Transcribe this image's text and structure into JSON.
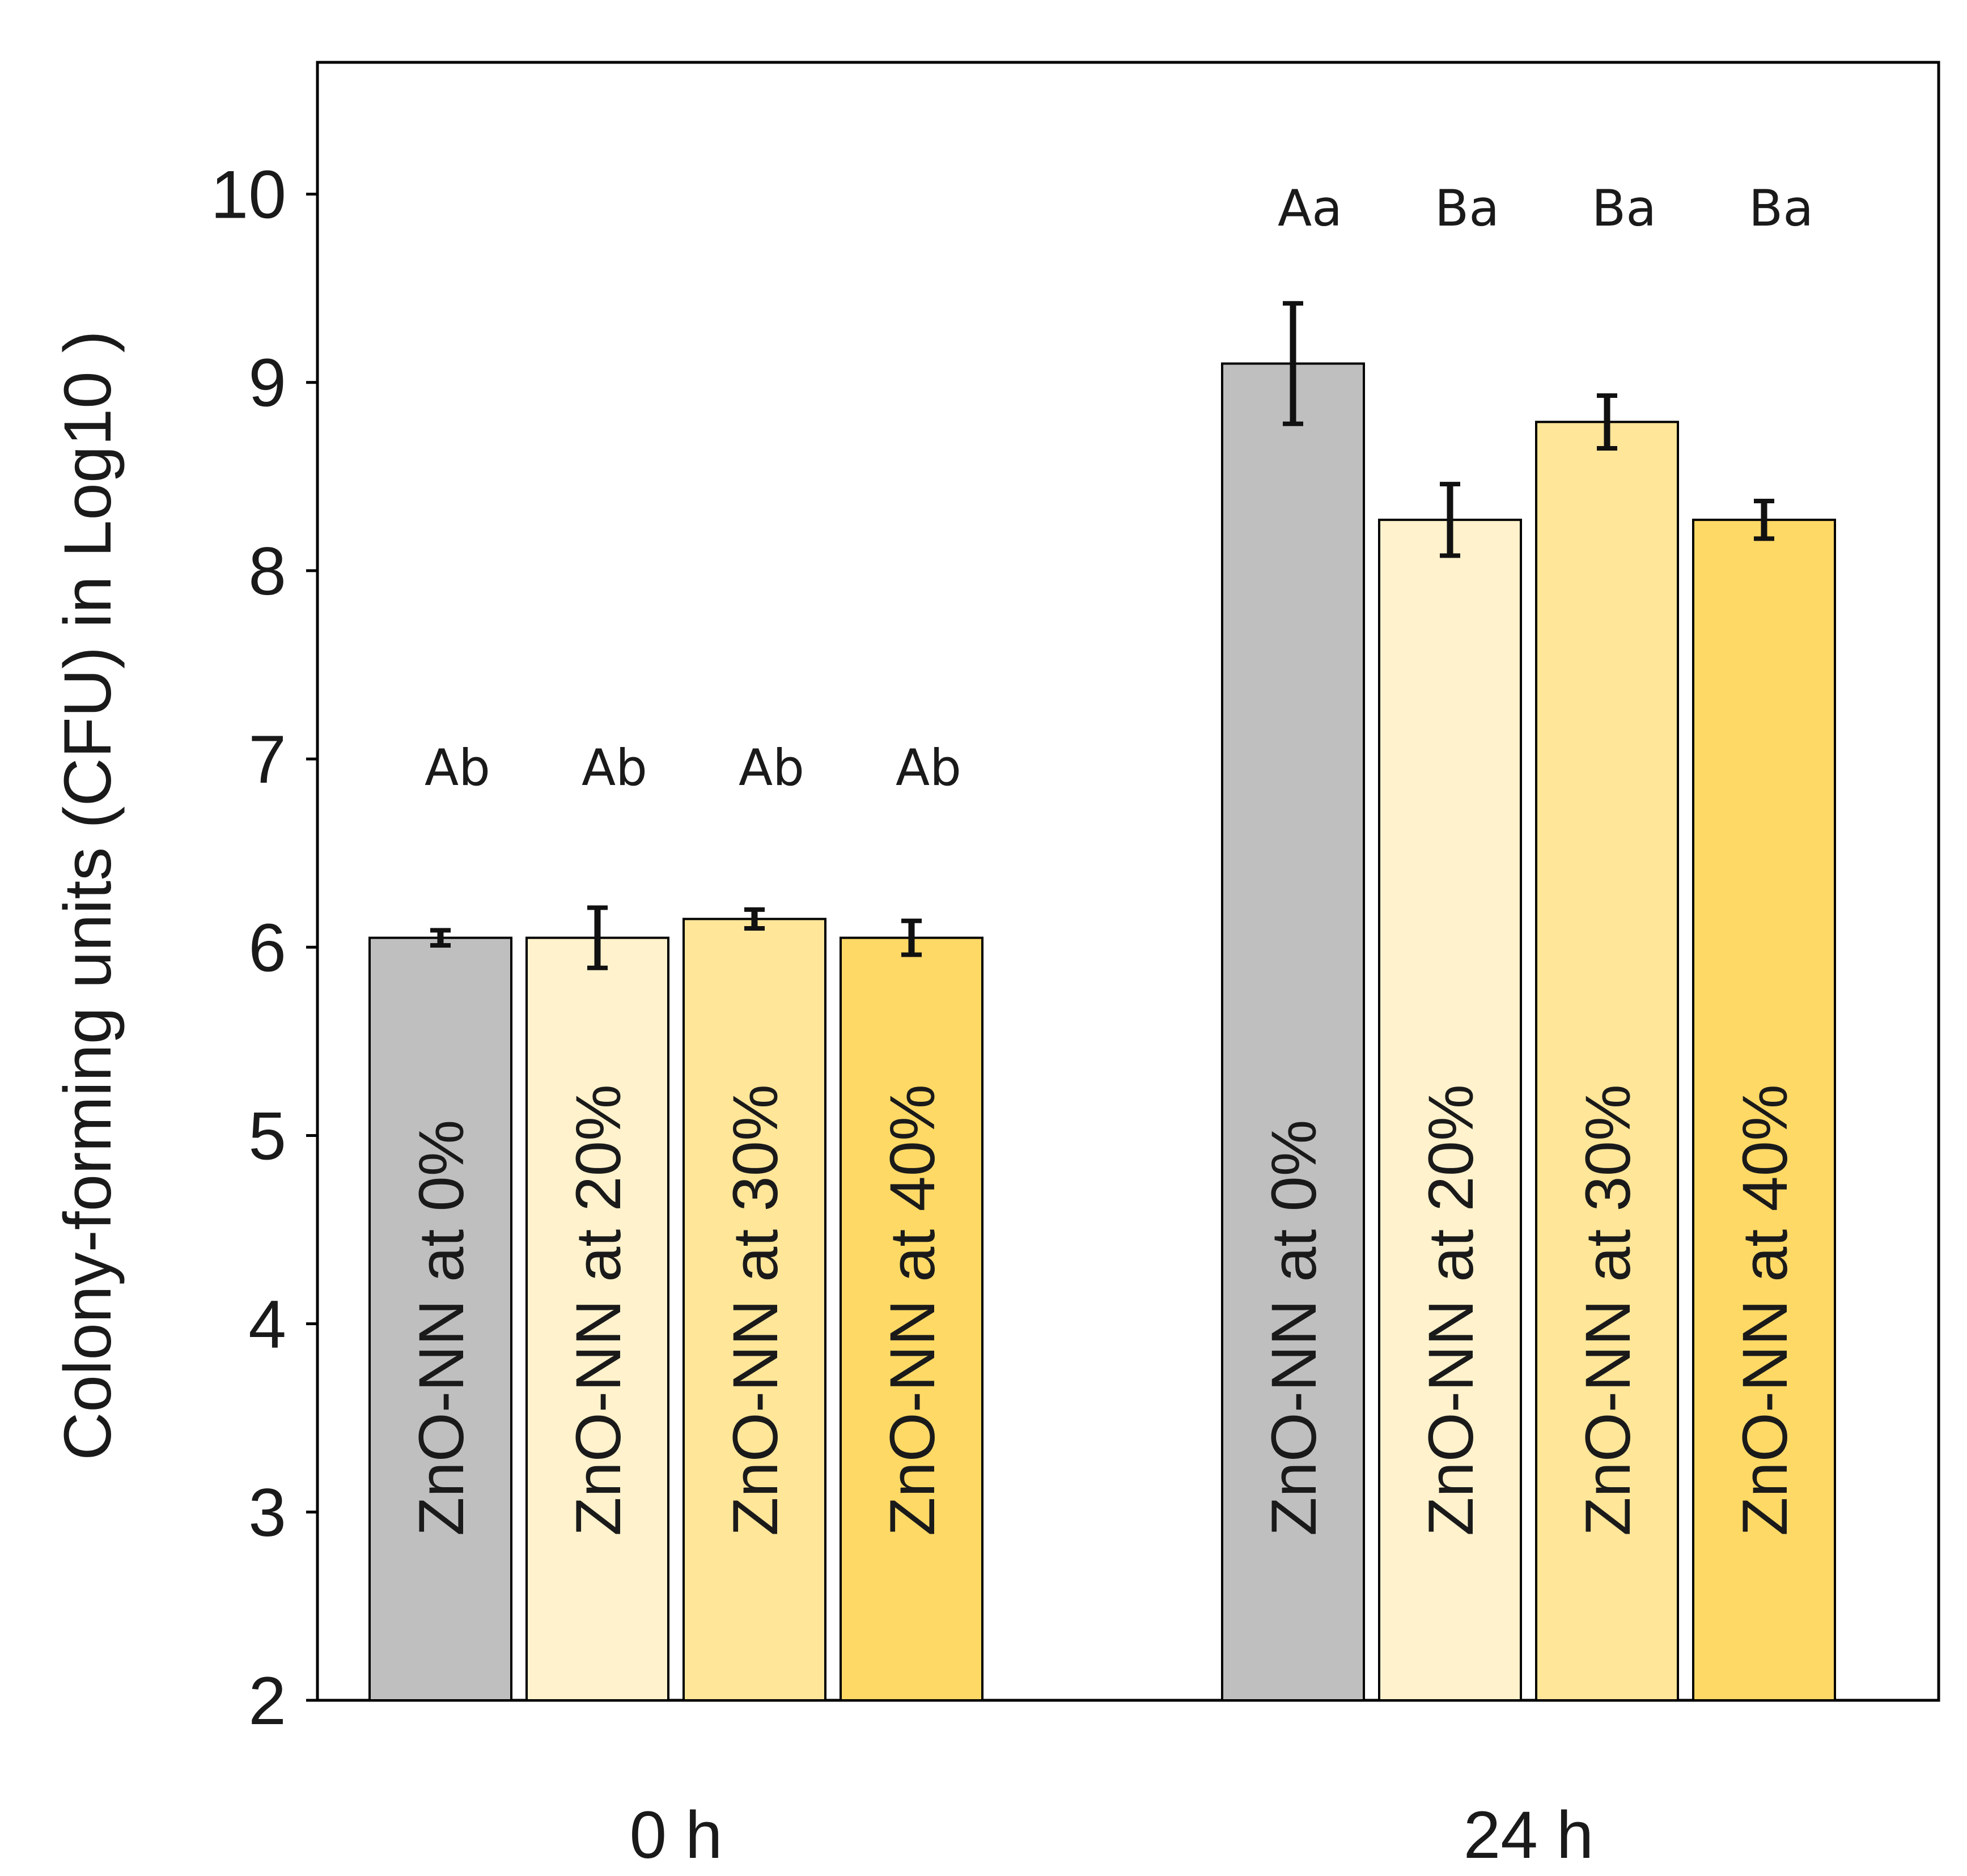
{
  "chart_data": {
    "type": "bar",
    "title": "",
    "xlabel": "",
    "ylabel": "Colony-forming units (CFU) in Log10 )",
    "ylim": [
      2,
      10.7
    ],
    "yticks": [
      2,
      3,
      4,
      5,
      6,
      7,
      8,
      9,
      10
    ],
    "ytick_labels": [
      "2",
      "3",
      "4",
      "5",
      "6",
      "7",
      "8",
      "9",
      "10"
    ],
    "grid": false,
    "groups": [
      {
        "label": "0 h",
        "bars": [
          {
            "name": "ZnO-NN  at  0%",
            "value": 6.05,
            "error": 0.04,
            "letters": "Ab",
            "color": "#bfbfbf"
          },
          {
            "name": "ZnO-NN  at  20%",
            "value": 6.05,
            "error": 0.16,
            "letters": "Ab",
            "color": "#fff2cc"
          },
          {
            "name": "ZnO-NN  at  30%",
            "value": 6.15,
            "error": 0.05,
            "letters": "Ab",
            "color": "#ffe699"
          },
          {
            "name": "ZnO-NN  at  40%",
            "value": 6.05,
            "error": 0.09,
            "letters": "Ab",
            "color": "#ffd966"
          }
        ]
      },
      {
        "label": "24 h",
        "bars": [
          {
            "name": "ZnO-NN  at  0%",
            "value": 9.1,
            "error": 0.32,
            "letters": "Aa",
            "color": "#bfbfbf"
          },
          {
            "name": "ZnO-NN  at  20%",
            "value": 8.27,
            "error": 0.19,
            "letters": "Ba",
            "color": "#fff2cc"
          },
          {
            "name": "ZnO-NN  at  30%",
            "value": 8.79,
            "error": 0.14,
            "letters": "Ba",
            "color": "#ffe699"
          },
          {
            "name": "ZnO-NN  at  40%",
            "value": 8.27,
            "error": 0.1,
            "letters": "Ba",
            "color": "#ffd966"
          }
        ]
      }
    ]
  }
}
